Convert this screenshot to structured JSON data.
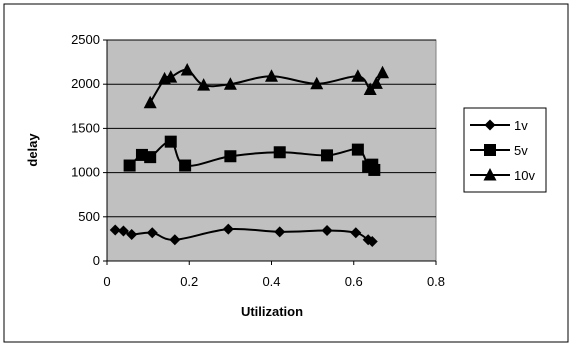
{
  "chart_data": {
    "type": "line",
    "xlabel": "Utilization",
    "ylabel": "delay",
    "xlim": [
      0,
      0.8
    ],
    "ylim": [
      0,
      2500
    ],
    "xticks": [
      0,
      0.2,
      0.4,
      0.6,
      0.8
    ],
    "yticks": [
      0,
      500,
      1000,
      1500,
      2000,
      2500
    ],
    "xtick_labels": [
      "0",
      "0.2",
      "0.4",
      "0.6",
      "0.8"
    ],
    "ytick_labels": [
      "0",
      "500",
      "1000",
      "1500",
      "2000",
      "2500"
    ],
    "grid": "horizontal",
    "plot_background": "#C0C0C0",
    "legend_position": "right",
    "line_color": "#000000",
    "series": [
      {
        "name": "1v",
        "marker": "diamond",
        "points": [
          [
            0.02,
            350
          ],
          [
            0.04,
            340
          ],
          [
            0.06,
            300
          ],
          [
            0.11,
            320
          ],
          [
            0.165,
            240
          ],
          [
            0.295,
            360
          ],
          [
            0.42,
            330
          ],
          [
            0.535,
            345
          ],
          [
            0.605,
            320
          ],
          [
            0.635,
            240
          ],
          [
            0.645,
            220
          ]
        ]
      },
      {
        "name": "5v",
        "marker": "square",
        "points": [
          [
            0.055,
            1080
          ],
          [
            0.085,
            1200
          ],
          [
            0.105,
            1175
          ],
          [
            0.155,
            1350
          ],
          [
            0.19,
            1080
          ],
          [
            0.3,
            1185
          ],
          [
            0.42,
            1230
          ],
          [
            0.535,
            1195
          ],
          [
            0.61,
            1260
          ],
          [
            0.635,
            1070
          ],
          [
            0.645,
            1090
          ],
          [
            0.65,
            1030
          ]
        ]
      },
      {
        "name": "10v",
        "marker": "triangle",
        "points": [
          [
            0.105,
            1790
          ],
          [
            0.14,
            2060
          ],
          [
            0.155,
            2080
          ],
          [
            0.195,
            2160
          ],
          [
            0.235,
            1990
          ],
          [
            0.3,
            2000
          ],
          [
            0.4,
            2090
          ],
          [
            0.51,
            2005
          ],
          [
            0.61,
            2090
          ],
          [
            0.64,
            1940
          ],
          [
            0.655,
            2010
          ],
          [
            0.67,
            2130
          ]
        ]
      }
    ]
  }
}
